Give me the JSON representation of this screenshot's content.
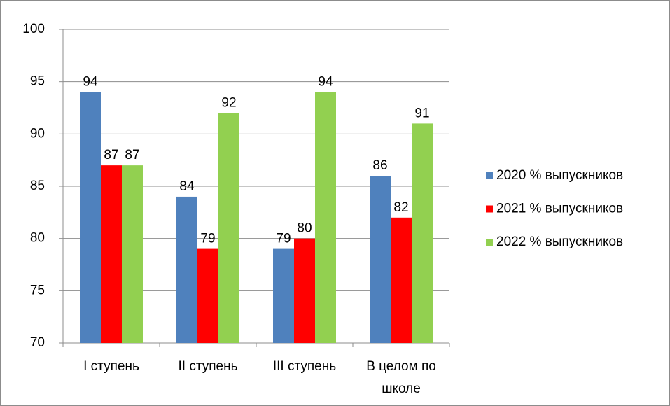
{
  "chart_data": {
    "type": "bar",
    "categories": [
      "I ступень",
      "II ступень",
      "III ступень",
      "В целом по школе"
    ],
    "series": [
      {
        "name": "2020 % выпускников",
        "color": "#4f81bd",
        "values": [
          94,
          84,
          79,
          86
        ]
      },
      {
        "name": "2021 % выпускников",
        "color": "#ff0000",
        "values": [
          87,
          79,
          80,
          82
        ]
      },
      {
        "name": "2022 % выпускников",
        "color": "#92d050",
        "values": [
          87,
          92,
          94,
          91
        ]
      }
    ],
    "ylim": [
      70,
      100
    ],
    "yticks": [
      70,
      75,
      80,
      85,
      90,
      95,
      100
    ],
    "grid": true,
    "legend": "right"
  }
}
